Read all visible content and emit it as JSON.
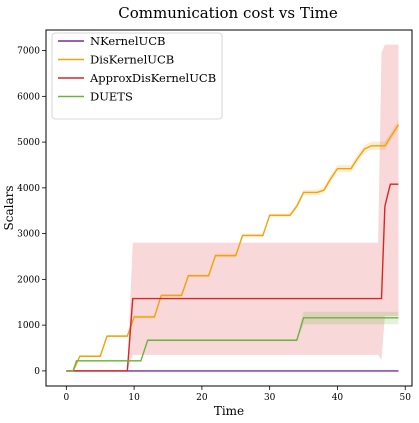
{
  "chart_data": {
    "type": "line",
    "title": "Communication cost vs Time",
    "xlabel": "Time",
    "ylabel": "Scalars",
    "xlim": [
      -3,
      51
    ],
    "ylim": [
      -330,
      7450
    ],
    "xticks": [
      0,
      10,
      20,
      30,
      40,
      50
    ],
    "yticks": [
      0,
      1000,
      2000,
      3000,
      4000,
      5000,
      6000,
      7000
    ],
    "grid": false,
    "legend_position": "top-left",
    "series": [
      {
        "name": "NKernelUCB",
        "color": "#7b2d8e",
        "points": [
          [
            0,
            0
          ],
          [
            49,
            0
          ]
        ]
      },
      {
        "name": "DisKernelUCB",
        "color": "#f0a30a",
        "points": [
          [
            0,
            0
          ],
          [
            1,
            0
          ],
          [
            2,
            320
          ],
          [
            4,
            320
          ],
          [
            5,
            320
          ],
          [
            6,
            760
          ],
          [
            8,
            760
          ],
          [
            9,
            760
          ],
          [
            10,
            1180
          ],
          [
            12,
            1180
          ],
          [
            13,
            1180
          ],
          [
            14,
            1650
          ],
          [
            16,
            1650
          ],
          [
            17,
            1650
          ],
          [
            18,
            2080
          ],
          [
            20,
            2080
          ],
          [
            21,
            2080
          ],
          [
            22,
            2520
          ],
          [
            24,
            2520
          ],
          [
            25,
            2520
          ],
          [
            26,
            2960
          ],
          [
            28,
            2960
          ],
          [
            29,
            2960
          ],
          [
            30,
            3400
          ],
          [
            32,
            3400
          ],
          [
            33,
            3400
          ],
          [
            34,
            3600
          ],
          [
            35,
            3900
          ],
          [
            37,
            3900
          ],
          [
            38,
            3950
          ],
          [
            39,
            4200
          ],
          [
            40,
            4420
          ],
          [
            42,
            4420
          ],
          [
            43,
            4650
          ],
          [
            44,
            4850
          ],
          [
            45,
            4920
          ],
          [
            47,
            4920
          ],
          [
            48,
            5150
          ],
          [
            49,
            5380
          ]
        ],
        "band": [
          [
            0,
            0,
            0
          ],
          [
            1,
            0,
            0
          ],
          [
            2,
            300,
            340
          ],
          [
            4,
            300,
            340
          ],
          [
            5,
            300,
            340
          ],
          [
            6,
            740,
            780
          ],
          [
            8,
            740,
            780
          ],
          [
            9,
            740,
            780
          ],
          [
            10,
            1150,
            1210
          ],
          [
            12,
            1150,
            1210
          ],
          [
            13,
            1150,
            1210
          ],
          [
            14,
            1620,
            1680
          ],
          [
            16,
            1620,
            1680
          ],
          [
            17,
            1620,
            1680
          ],
          [
            18,
            2050,
            2110
          ],
          [
            20,
            2050,
            2110
          ],
          [
            21,
            2050,
            2110
          ],
          [
            22,
            2480,
            2560
          ],
          [
            24,
            2480,
            2560
          ],
          [
            25,
            2480,
            2560
          ],
          [
            26,
            2920,
            3000
          ],
          [
            28,
            2920,
            3000
          ],
          [
            29,
            2920,
            3000
          ],
          [
            30,
            3360,
            3440
          ],
          [
            32,
            3360,
            3440
          ],
          [
            33,
            3360,
            3440
          ],
          [
            34,
            3540,
            3660
          ],
          [
            35,
            3840,
            3960
          ],
          [
            37,
            3840,
            3960
          ],
          [
            38,
            3880,
            4020
          ],
          [
            39,
            4120,
            4280
          ],
          [
            40,
            4340,
            4500
          ],
          [
            42,
            4340,
            4500
          ],
          [
            43,
            4560,
            4740
          ],
          [
            44,
            4760,
            4940
          ],
          [
            45,
            4830,
            5010
          ],
          [
            47,
            4830,
            5010
          ],
          [
            48,
            5060,
            5240
          ],
          [
            49,
            5280,
            5480
          ]
        ]
      },
      {
        "name": "ApproxDisKernelUCB",
        "color": "#d62728",
        "points": [
          [
            0,
            0
          ],
          [
            9,
            0
          ],
          [
            9.8,
            1580
          ],
          [
            46,
            1580
          ],
          [
            46.5,
            1580
          ],
          [
            47,
            3600
          ],
          [
            47.8,
            4080
          ],
          [
            49,
            4080
          ]
        ],
        "band": [
          [
            0,
            0,
            0
          ],
          [
            9,
            0,
            0
          ],
          [
            9.8,
            350,
            2800
          ],
          [
            46,
            350,
            2800
          ],
          [
            46.5,
            250,
            6950
          ],
          [
            47,
            1200,
            7130
          ],
          [
            47.8,
            1200,
            7130
          ],
          [
            49,
            1200,
            7130
          ]
        ]
      },
      {
        "name": "DUETS",
        "color": "#6cb33e",
        "points": [
          [
            0,
            0
          ],
          [
            1,
            0
          ],
          [
            1.5,
            220
          ],
          [
            10,
            220
          ],
          [
            11,
            220
          ],
          [
            12,
            670
          ],
          [
            34,
            670
          ],
          [
            35,
            1160
          ],
          [
            49,
            1160
          ]
        ],
        "band": [
          [
            0,
            0,
            0
          ],
          [
            1,
            0,
            0
          ],
          [
            1.5,
            200,
            240
          ],
          [
            10,
            200,
            240
          ],
          [
            11,
            200,
            240
          ],
          [
            12,
            650,
            690
          ],
          [
            34,
            650,
            690
          ],
          [
            35,
            1020,
            1290
          ],
          [
            49,
            1020,
            1290
          ]
        ]
      }
    ]
  }
}
